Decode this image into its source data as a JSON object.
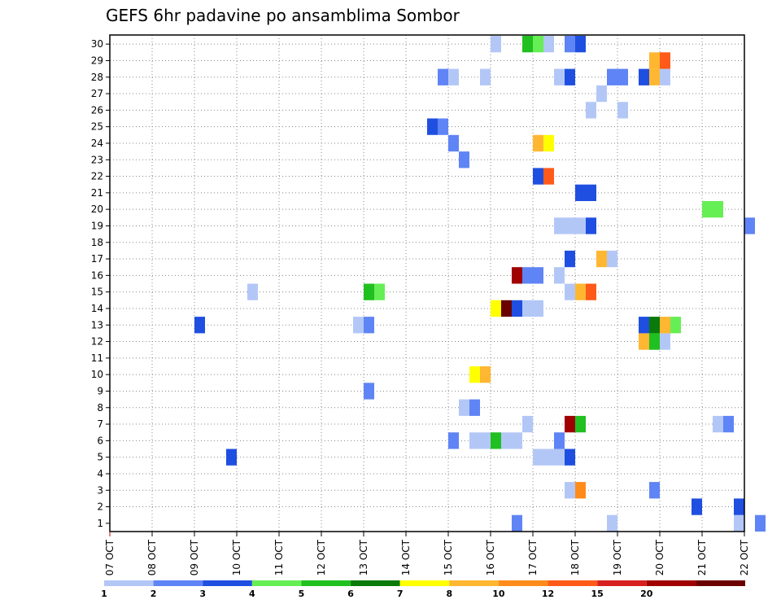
{
  "chart_data": {
    "type": "heatmap",
    "title": "GEFS 6hr padavine po ansamblima Sombor",
    "x_labels": [
      "07 OCT",
      "08 OCT",
      "09 OCT",
      "10 OCT",
      "11 OCT",
      "12 OCT",
      "13 OCT",
      "14 OCT",
      "15 OCT",
      "16 OCT",
      "17 OCT",
      "18 OCT",
      "19 OCT",
      "20 OCT",
      "21 OCT",
      "22 OCT"
    ],
    "y_labels": [
      "1",
      "2",
      "3",
      "4",
      "5",
      "6",
      "7",
      "8",
      "9",
      "10",
      "11",
      "12",
      "13",
      "14",
      "15",
      "16",
      "17",
      "18",
      "19",
      "20",
      "21",
      "22",
      "23",
      "24",
      "25",
      "26",
      "27",
      "28",
      "29",
      "30"
    ],
    "xlim_days": [
      0,
      15
    ],
    "ylim": [
      0,
      30
    ],
    "grid": true,
    "colorbar": {
      "labels": [
        "1",
        "2",
        "3",
        "4",
        "5",
        "6",
        "7",
        "8",
        "10",
        "12",
        "15",
        "20"
      ],
      "colors": [
        "#b3c7f7",
        "#5f84f5",
        "#1f4fe0",
        "#66ee55",
        "#20c020",
        "#0a7a0a",
        "#ffff00",
        "#ffb732",
        "#ff8c1a",
        "#ff5a1a",
        "#d72020",
        "#a00000",
        "#6a0000"
      ]
    },
    "cells": [
      {
        "day": 9.5,
        "member": 0,
        "c": 2
      },
      {
        "day": 11.75,
        "member": 0,
        "c": 1
      },
      {
        "day": 14.75,
        "member": 0,
        "c": 1
      },
      {
        "day": 15.25,
        "member": 0,
        "c": 2
      },
      {
        "day": 13.75,
        "member": 1,
        "c": 3
      },
      {
        "day": 14.75,
        "member": 1,
        "c": 3
      },
      {
        "day": 12.75,
        "member": 2,
        "c": 2
      },
      {
        "day": 10.75,
        "member": 2,
        "c": 1
      },
      {
        "day": 11.0,
        "member": 2,
        "c": 9
      },
      {
        "day": 2.75,
        "member": 4,
        "c": 3
      },
      {
        "day": 10.0,
        "member": 4,
        "c": 1
      },
      {
        "day": 10.25,
        "member": 4,
        "c": 1
      },
      {
        "day": 10.5,
        "member": 4,
        "c": 1
      },
      {
        "day": 10.75,
        "member": 4,
        "c": 3
      },
      {
        "day": 8.0,
        "member": 5,
        "c": 2
      },
      {
        "day": 8.5,
        "member": 5,
        "c": 1
      },
      {
        "day": 8.75,
        "member": 5,
        "c": 1
      },
      {
        "day": 9.0,
        "member": 5,
        "c": 5
      },
      {
        "day": 9.25,
        "member": 5,
        "c": 1
      },
      {
        "day": 9.5,
        "member": 5,
        "c": 1
      },
      {
        "day": 10.5,
        "member": 5,
        "c": 2
      },
      {
        "day": 9.75,
        "member": 6,
        "c": 1
      },
      {
        "day": 10.75,
        "member": 6,
        "c": 12
      },
      {
        "day": 11.0,
        "member": 6,
        "c": 5
      },
      {
        "day": 14.25,
        "member": 6,
        "c": 1
      },
      {
        "day": 14.5,
        "member": 6,
        "c": 2
      },
      {
        "day": 8.25,
        "member": 7,
        "c": 1
      },
      {
        "day": 8.5,
        "member": 7,
        "c": 2
      },
      {
        "day": 6.0,
        "member": 8,
        "c": 2
      },
      {
        "day": 8.5,
        "member": 9,
        "c": 7
      },
      {
        "day": 8.75,
        "member": 9,
        "c": 8
      },
      {
        "day": 12.5,
        "member": 11,
        "c": 8
      },
      {
        "day": 12.75,
        "member": 11,
        "c": 5
      },
      {
        "day": 13.0,
        "member": 11,
        "c": 1
      },
      {
        "day": 2.0,
        "member": 12,
        "c": 3
      },
      {
        "day": 5.75,
        "member": 12,
        "c": 1
      },
      {
        "day": 6.0,
        "member": 12,
        "c": 2
      },
      {
        "day": 12.5,
        "member": 12,
        "c": 3
      },
      {
        "day": 12.75,
        "member": 12,
        "c": 6
      },
      {
        "day": 13.0,
        "member": 12,
        "c": 8
      },
      {
        "day": 13.25,
        "member": 12,
        "c": 4
      },
      {
        "day": 9.0,
        "member": 13,
        "c": 7
      },
      {
        "day": 9.25,
        "member": 13,
        "c": 13
      },
      {
        "day": 9.5,
        "member": 13,
        "c": 3
      },
      {
        "day": 9.75,
        "member": 13,
        "c": 1
      },
      {
        "day": 10.0,
        "member": 13,
        "c": 1
      },
      {
        "day": 3.25,
        "member": 14,
        "c": 1
      },
      {
        "day": 6.0,
        "member": 14,
        "c": 5
      },
      {
        "day": 6.25,
        "member": 14,
        "c": 4
      },
      {
        "day": 10.75,
        "member": 14,
        "c": 1
      },
      {
        "day": 11.0,
        "member": 14,
        "c": 8
      },
      {
        "day": 11.25,
        "member": 14,
        "c": 10
      },
      {
        "day": 9.5,
        "member": 15,
        "c": 12
      },
      {
        "day": 9.75,
        "member": 15,
        "c": 2
      },
      {
        "day": 10.0,
        "member": 15,
        "c": 2
      },
      {
        "day": 10.5,
        "member": 15,
        "c": 1
      },
      {
        "day": 10.75,
        "member": 16,
        "c": 3
      },
      {
        "day": 11.5,
        "member": 16,
        "c": 8
      },
      {
        "day": 11.75,
        "member": 16,
        "c": 1
      },
      {
        "day": 15.0,
        "member": 18,
        "c": 2
      },
      {
        "day": 10.5,
        "member": 18,
        "c": 1
      },
      {
        "day": 10.75,
        "member": 18,
        "c": 1
      },
      {
        "day": 11.0,
        "member": 18,
        "c": 1
      },
      {
        "day": 11.25,
        "member": 18,
        "c": 3
      },
      {
        "day": 14.0,
        "member": 19,
        "c": 4
      },
      {
        "day": 14.25,
        "member": 19,
        "c": 4
      },
      {
        "day": 11.0,
        "member": 20,
        "c": 3
      },
      {
        "day": 11.25,
        "member": 20,
        "c": 3
      },
      {
        "day": 10.0,
        "member": 21,
        "c": 3
      },
      {
        "day": 10.25,
        "member": 21,
        "c": 10
      },
      {
        "day": 8.25,
        "member": 22,
        "c": 2
      },
      {
        "day": 8.0,
        "member": 23,
        "c": 2
      },
      {
        "day": 10.0,
        "member": 23,
        "c": 8
      },
      {
        "day": 10.25,
        "member": 23,
        "c": 7
      },
      {
        "day": 7.5,
        "member": 24,
        "c": 3
      },
      {
        "day": 7.75,
        "member": 24,
        "c": 2
      },
      {
        "day": 11.25,
        "member": 25,
        "c": 1
      },
      {
        "day": 12.0,
        "member": 25,
        "c": 1
      },
      {
        "day": 11.5,
        "member": 26,
        "c": 1
      },
      {
        "day": 7.75,
        "member": 27,
        "c": 2
      },
      {
        "day": 8.0,
        "member": 27,
        "c": 1
      },
      {
        "day": 8.75,
        "member": 27,
        "c": 1
      },
      {
        "day": 10.5,
        "member": 27,
        "c": 1
      },
      {
        "day": 10.75,
        "member": 27,
        "c": 3
      },
      {
        "day": 11.75,
        "member": 27,
        "c": 2
      },
      {
        "day": 12.0,
        "member": 27,
        "c": 2
      },
      {
        "day": 12.5,
        "member": 27,
        "c": 3
      },
      {
        "day": 12.75,
        "member": 27,
        "c": 8
      },
      {
        "day": 13.0,
        "member": 27,
        "c": 1
      },
      {
        "day": 12.75,
        "member": 28,
        "c": 8
      },
      {
        "day": 13.0,
        "member": 28,
        "c": 10
      },
      {
        "day": 9.0,
        "member": 29,
        "c": 1
      },
      {
        "day": 9.75,
        "member": 29,
        "c": 5
      },
      {
        "day": 10.0,
        "member": 29,
        "c": 4
      },
      {
        "day": 10.25,
        "member": 29,
        "c": 1
      },
      {
        "day": 10.75,
        "member": 29,
        "c": 2
      },
      {
        "day": 11.0,
        "member": 29,
        "c": 3
      }
    ]
  }
}
